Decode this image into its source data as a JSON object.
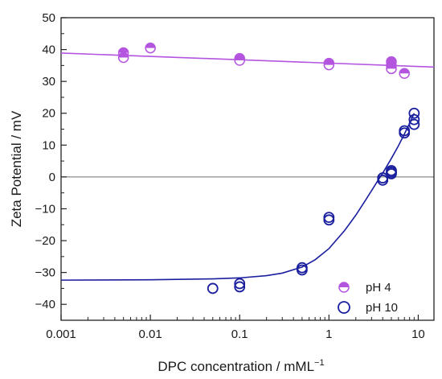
{
  "chart_data": {
    "type": "scatter",
    "xlabel": "DPC concentration / mML",
    "xlabel_superscript": "−1",
    "ylabel": "Zeta Potential / mV",
    "x_scale": "log",
    "xlim": [
      0.001,
      15
    ],
    "ylim": [
      -45,
      50
    ],
    "x_ticks": [
      0.001,
      0.01,
      0.1,
      1,
      10
    ],
    "x_tick_labels": [
      "0.001",
      "0.01",
      "0.1",
      "1",
      "10"
    ],
    "y_ticks": [
      -40,
      -30,
      -20,
      -10,
      0,
      10,
      20,
      30,
      40,
      50
    ],
    "y_tick_labels": [
      "−40",
      "−30",
      "−20",
      "−10",
      "0",
      "10",
      "20",
      "30",
      "40",
      "50"
    ],
    "zero_line": true,
    "legend_position": "bottom-right",
    "series": [
      {
        "name": "pH 4",
        "color": "#b455e0",
        "marker": "half-filled-circle",
        "points": [
          {
            "x": 0.005,
            "y": 39.0
          },
          {
            "x": 0.005,
            "y": 37.5
          },
          {
            "x": 0.01,
            "y": 40.5
          },
          {
            "x": 0.1,
            "y": 37.2
          },
          {
            "x": 0.1,
            "y": 36.6
          },
          {
            "x": 1,
            "y": 35.7
          },
          {
            "x": 1,
            "y": 35.2
          },
          {
            "x": 5,
            "y": 36.2
          },
          {
            "x": 5,
            "y": 35.0
          },
          {
            "x": 5,
            "y": 34.0
          },
          {
            "x": 7,
            "y": 32.5
          }
        ],
        "fit_line": [
          {
            "x": 0.001,
            "y": 38.9
          },
          {
            "x": 15,
            "y": 34.5
          }
        ]
      },
      {
        "name": "pH 10",
        "color": "#1a1f9e",
        "marker": "open-circle",
        "points": [
          {
            "x": 0.05,
            "y": -35.0
          },
          {
            "x": 0.1,
            "y": -33.5
          },
          {
            "x": 0.1,
            "y": -34.5
          },
          {
            "x": 0.5,
            "y": -28.5
          },
          {
            "x": 0.5,
            "y": -29.2
          },
          {
            "x": 1,
            "y": -12.7
          },
          {
            "x": 1,
            "y": -13.5
          },
          {
            "x": 4,
            "y": -0.3
          },
          {
            "x": 4,
            "y": -1.0
          },
          {
            "x": 5,
            "y": 1.5
          },
          {
            "x": 5,
            "y": 1.0
          },
          {
            "x": 5,
            "y": 2.0
          },
          {
            "x": 7,
            "y": 14.5
          },
          {
            "x": 7,
            "y": 13.8
          },
          {
            "x": 9,
            "y": 20.0
          },
          {
            "x": 9,
            "y": 18.0
          },
          {
            "x": 9,
            "y": 16.5
          }
        ],
        "fit_line": [
          {
            "x": 0.001,
            "y": -32.4
          },
          {
            "x": 0.01,
            "y": -32.3
          },
          {
            "x": 0.05,
            "y": -32.0
          },
          {
            "x": 0.1,
            "y": -31.7
          },
          {
            "x": 0.2,
            "y": -31.0
          },
          {
            "x": 0.3,
            "y": -30.2
          },
          {
            "x": 0.5,
            "y": -28.3
          },
          {
            "x": 0.7,
            "y": -26.0
          },
          {
            "x": 1,
            "y": -22.5
          },
          {
            "x": 1.5,
            "y": -16.8
          },
          {
            "x": 2,
            "y": -12.0
          },
          {
            "x": 2.5,
            "y": -7.8
          },
          {
            "x": 3,
            "y": -4.3
          },
          {
            "x": 3.5,
            "y": -1.3
          },
          {
            "x": 4,
            "y": 1.2
          },
          {
            "x": 5,
            "y": 5.8
          },
          {
            "x": 6,
            "y": 9.8
          },
          {
            "x": 7,
            "y": 13.5
          },
          {
            "x": 8,
            "y": 16.8
          },
          {
            "x": 9,
            "y": 20.0
          }
        ]
      }
    ]
  }
}
